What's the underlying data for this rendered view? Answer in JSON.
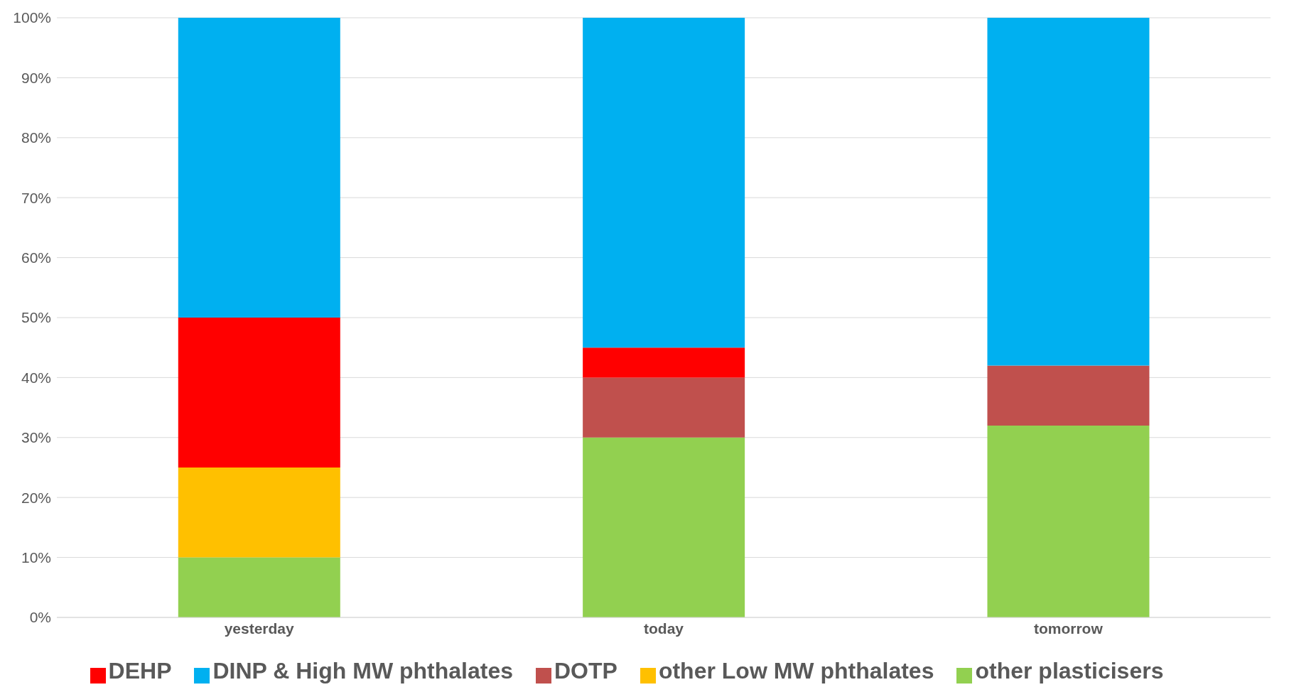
{
  "chart_data": {
    "type": "bar",
    "stacked": true,
    "categories": [
      "yesterday",
      "today",
      "tomorrow"
    ],
    "series": [
      {
        "name": "other plasticisers",
        "color": "#92d050",
        "values": [
          10,
          30,
          32
        ]
      },
      {
        "name": "DOTP",
        "color": "#c0504d",
        "values": [
          0,
          10,
          10
        ]
      },
      {
        "name": "other Low MW phthalates",
        "color": "#ffc000",
        "values": [
          15,
          0,
          0
        ]
      },
      {
        "name": "DEHP",
        "color": "#ff0000",
        "values": [
          25,
          5,
          0
        ]
      },
      {
        "name": "DINP & High MW phthalates",
        "color": "#00b0f0",
        "values": [
          50,
          55,
          58
        ]
      }
    ],
    "ylim": [
      0,
      100
    ],
    "yticks": [
      {
        "value": 0,
        "label": "0%"
      },
      {
        "value": 10,
        "label": "10%"
      },
      {
        "value": 20,
        "label": "20%"
      },
      {
        "value": 30,
        "label": "30%"
      },
      {
        "value": 40,
        "label": "40%"
      },
      {
        "value": 50,
        "label": "50%"
      },
      {
        "value": 60,
        "label": "60%"
      },
      {
        "value": 70,
        "label": "70%"
      },
      {
        "value": 80,
        "label": "80%"
      },
      {
        "value": 90,
        "label": "90%"
      },
      {
        "value": 100,
        "label": "100%"
      }
    ],
    "grid": "y",
    "legend": "bottom"
  }
}
